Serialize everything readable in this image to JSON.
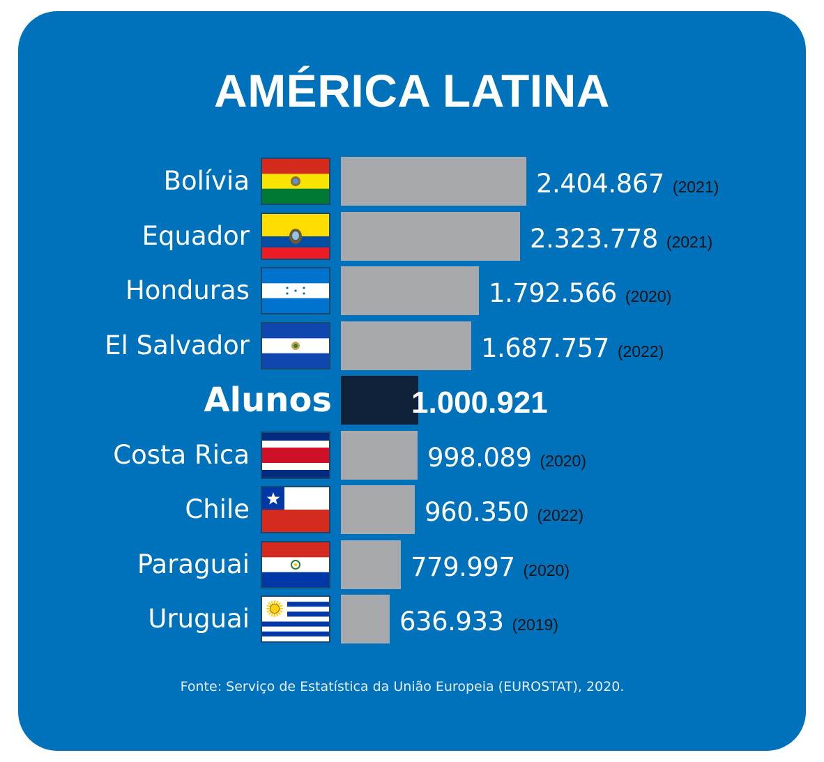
{
  "colors": {
    "background": "#0072bc",
    "bar": "#a7a9ac",
    "highlight_bar": "#0f2138",
    "text": "#ffffff",
    "year_text": "#111111"
  },
  "chart_data": {
    "type": "bar",
    "orientation": "horizontal",
    "title": "AMÉRICA LATINA",
    "categories": [
      "Bolívia",
      "Equador",
      "Honduras",
      "El Salvador",
      "Alunos",
      "Costa Rica",
      "Chile",
      "Paraguai",
      "Uruguai"
    ],
    "values": [
      2404867,
      2323778,
      1792566,
      1687757,
      1000921,
      998089,
      960350,
      779997,
      636933
    ],
    "value_labels": [
      "2.404.867",
      "2.323.778",
      "1.792.566",
      "1.687.757",
      "1.000.921",
      "998.089",
      "960.350",
      "779.997",
      "636.933"
    ],
    "years": [
      "(2021)",
      "(2021)",
      "(2020)",
      "(2022)",
      "",
      "(2020)",
      "(2022)",
      "(2020)",
      "(2019)"
    ],
    "flags": [
      "bolivia-flag",
      "ecuador-flag",
      "honduras-flag",
      "el-salvador-flag",
      "",
      "costa-rica-flag",
      "chile-flag",
      "paraguay-flag",
      "uruguay-flag"
    ],
    "highlight": "Alunos",
    "source": "Fonte: Serviço de Estatística da União Europeia (EUROSTAT), 2020.",
    "grid": false,
    "legend": "none"
  }
}
